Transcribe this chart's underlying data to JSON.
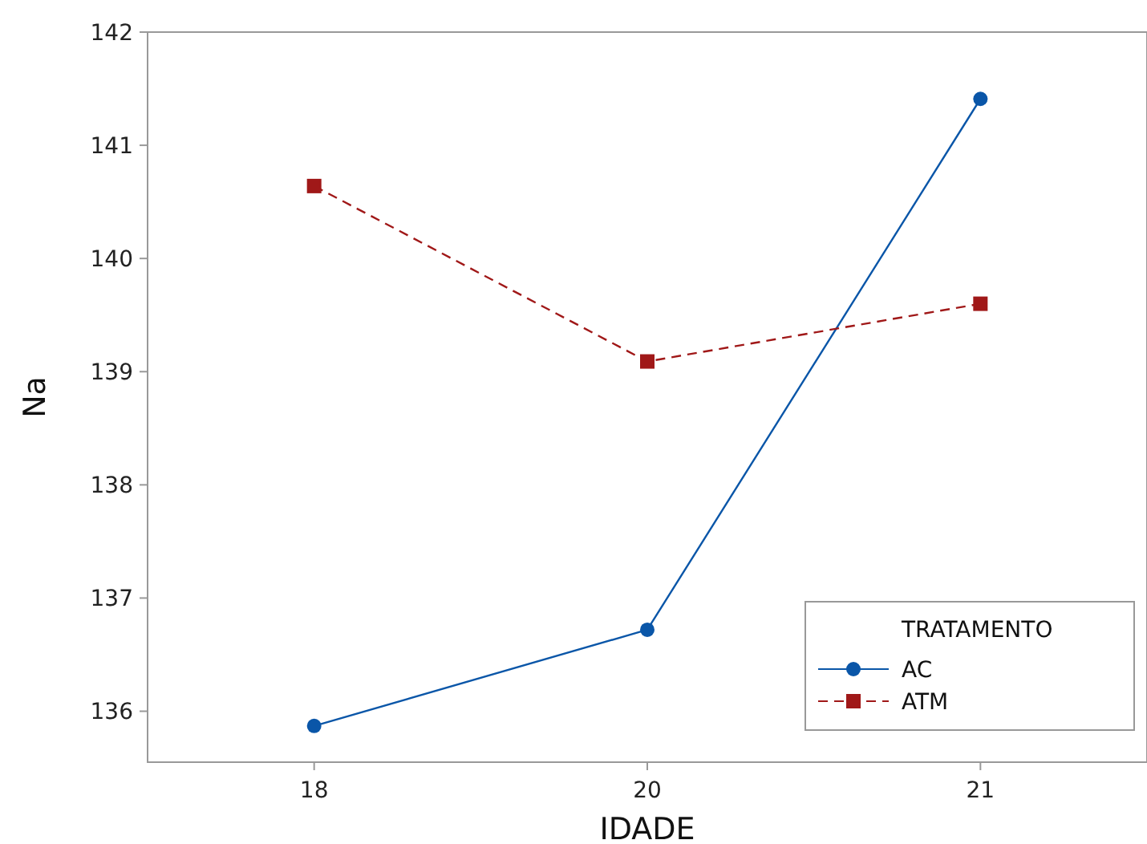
{
  "chart_data": {
    "type": "line",
    "xlabel": "IDADE",
    "ylabel": "Na",
    "legend_title": "TRATAMENTO",
    "legend": "bottom right",
    "categories": [
      "18",
      "20",
      "21"
    ],
    "series": [
      {
        "name": "AC",
        "color": "#0a56a8",
        "values": [
          135.87,
          136.72,
          141.41
        ],
        "marker": "circle",
        "line_style": "solid"
      },
      {
        "name": "ATM",
        "color": "#a01818",
        "values": [
          140.64,
          139.09,
          139.6
        ],
        "marker": "square",
        "line_style": "dashed"
      }
    ],
    "ylim": [
      135.55,
      142
    ],
    "yticks": [
      136,
      137,
      138,
      139,
      140,
      141,
      142
    ]
  }
}
